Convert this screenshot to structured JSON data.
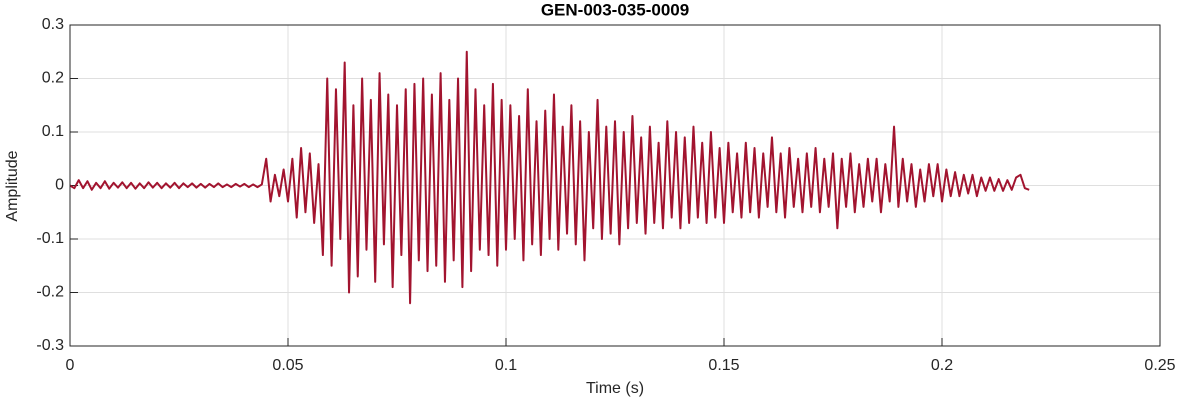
{
  "chart_data": {
    "type": "line",
    "title": "GEN-003-035-0009",
    "x_label": "Time (s)",
    "y_label": "Amplitude",
    "xlim": [
      0,
      0.25
    ],
    "xticks": [
      0,
      0.05,
      0.1,
      0.15,
      0.2,
      0.25
    ],
    "ylim": [
      -0.3,
      0.3
    ],
    "yticks": [
      -0.3,
      -0.2,
      -0.1,
      0,
      0.1,
      0.2,
      0.3
    ],
    "grid": true,
    "series": [
      {
        "color": "#a2142f",
        "x": [
          0,
          0.001,
          0.002,
          0.003,
          0.004,
          0.005,
          0.006,
          0.007,
          0.008,
          0.009,
          0.01,
          0.011,
          0.012,
          0.013,
          0.014,
          0.015,
          0.016,
          0.017,
          0.018,
          0.019,
          0.02,
          0.021,
          0.022,
          0.023,
          0.024,
          0.025,
          0.026,
          0.027,
          0.028,
          0.029,
          0.03,
          0.031,
          0.032,
          0.033,
          0.034,
          0.035,
          0.036,
          0.037,
          0.038,
          0.039,
          0.04,
          0.041,
          0.042,
          0.043,
          0.044,
          0.045,
          0.046,
          0.047,
          0.048,
          0.049,
          0.05,
          0.051,
          0.052,
          0.053,
          0.054,
          0.055,
          0.056,
          0.057,
          0.058,
          0.059,
          0.06,
          0.061,
          0.062,
          0.063,
          0.064,
          0.065,
          0.066,
          0.067,
          0.068,
          0.069,
          0.07,
          0.071,
          0.072,
          0.073,
          0.074,
          0.075,
          0.076,
          0.077,
          0.078,
          0.079,
          0.08,
          0.081,
          0.082,
          0.083,
          0.084,
          0.085,
          0.086,
          0.087,
          0.088,
          0.089,
          0.09,
          0.091,
          0.092,
          0.093,
          0.094,
          0.095,
          0.096,
          0.097,
          0.098,
          0.099,
          0.1,
          0.101,
          0.102,
          0.103,
          0.104,
          0.105,
          0.106,
          0.107,
          0.108,
          0.109,
          0.11,
          0.111,
          0.112,
          0.113,
          0.114,
          0.115,
          0.116,
          0.117,
          0.118,
          0.119,
          0.12,
          0.121,
          0.122,
          0.123,
          0.124,
          0.125,
          0.126,
          0.127,
          0.128,
          0.129,
          0.13,
          0.131,
          0.132,
          0.133,
          0.134,
          0.135,
          0.136,
          0.137,
          0.138,
          0.139,
          0.14,
          0.141,
          0.142,
          0.143,
          0.144,
          0.145,
          0.146,
          0.147,
          0.148,
          0.149,
          0.15,
          0.151,
          0.152,
          0.153,
          0.154,
          0.155,
          0.156,
          0.157,
          0.158,
          0.159,
          0.16,
          0.161,
          0.162,
          0.163,
          0.164,
          0.165,
          0.166,
          0.167,
          0.168,
          0.169,
          0.17,
          0.171,
          0.172,
          0.173,
          0.174,
          0.175,
          0.176,
          0.177,
          0.178,
          0.179,
          0.18,
          0.181,
          0.182,
          0.183,
          0.184,
          0.185,
          0.186,
          0.187,
          0.188,
          0.189,
          0.19,
          0.191,
          0.192,
          0.193,
          0.194,
          0.195,
          0.196,
          0.197,
          0.198,
          0.199,
          0.2,
          0.201,
          0.202,
          0.203,
          0.204,
          0.205,
          0.206,
          0.207,
          0.208,
          0.209,
          0.21,
          0.211,
          0.212,
          0.213,
          0.214,
          0.215,
          0.216,
          0.217,
          0.218,
          0.219,
          0.22
        ],
        "values": [
          0,
          -0.005,
          0.01,
          -0.005,
          0.008,
          -0.008,
          0.005,
          -0.005,
          0.008,
          -0.006,
          0.005,
          -0.004,
          0.006,
          -0.005,
          0.005,
          -0.006,
          0.004,
          -0.005,
          0.006,
          -0.004,
          0.005,
          -0.005,
          0.004,
          -0.004,
          0.005,
          -0.005,
          0.004,
          -0.003,
          0.004,
          -0.004,
          0.003,
          -0.004,
          0.003,
          -0.003,
          0.004,
          -0.003,
          0.002,
          -0.003,
          0.003,
          -0.002,
          0.003,
          -0.003,
          0.002,
          -0.003,
          0.002,
          0.05,
          -0.03,
          0.02,
          -0.02,
          0.03,
          -0.03,
          0.05,
          -0.06,
          0.07,
          -0.05,
          0.06,
          -0.07,
          0.04,
          -0.13,
          0.2,
          -0.15,
          0.18,
          -0.1,
          0.23,
          -0.2,
          0.15,
          -0.17,
          0.2,
          -0.12,
          0.16,
          -0.18,
          0.21,
          -0.11,
          0.17,
          -0.19,
          0.15,
          -0.13,
          0.18,
          -0.22,
          0.19,
          -0.14,
          0.2,
          -0.16,
          0.17,
          -0.15,
          0.21,
          -0.18,
          0.16,
          -0.14,
          0.2,
          -0.19,
          0.25,
          -0.16,
          0.18,
          -0.12,
          0.15,
          -0.13,
          0.19,
          -0.15,
          0.16,
          -0.12,
          0.15,
          -0.1,
          0.13,
          -0.14,
          0.18,
          -0.11,
          0.12,
          -0.13,
          0.14,
          -0.1,
          0.17,
          -0.12,
          0.11,
          -0.09,
          0.15,
          -0.11,
          0.12,
          -0.14,
          0.1,
          -0.08,
          0.16,
          -0.1,
          0.11,
          -0.09,
          0.12,
          -0.11,
          0.1,
          -0.08,
          0.13,
          -0.07,
          0.09,
          -0.09,
          0.11,
          -0.07,
          0.08,
          -0.08,
          0.12,
          -0.06,
          0.1,
          -0.08,
          0.09,
          -0.07,
          0.11,
          -0.06,
          0.08,
          -0.07,
          0.1,
          -0.06,
          0.07,
          -0.07,
          0.08,
          -0.05,
          0.06,
          -0.06,
          0.08,
          -0.05,
          0.07,
          -0.06,
          0.06,
          -0.04,
          0.09,
          -0.05,
          0.06,
          -0.06,
          0.07,
          -0.04,
          0.05,
          -0.05,
          0.06,
          -0.04,
          0.07,
          -0.05,
          0.05,
          -0.04,
          0.06,
          -0.08,
          0.05,
          -0.04,
          0.06,
          -0.05,
          0.04,
          -0.04,
          0.05,
          -0.03,
          0.05,
          -0.05,
          0.04,
          -0.03,
          0.11,
          -0.04,
          0.05,
          -0.03,
          0.04,
          -0.04,
          0.03,
          -0.03,
          0.04,
          -0.02,
          0.04,
          -0.03,
          0.03,
          -0.02,
          0.025,
          -0.02,
          0.02,
          -0.015,
          0.02,
          -0.02,
          0.015,
          -0.01,
          0.015,
          -0.01,
          0.012,
          -0.01,
          0.01,
          -0.008,
          0.015,
          0.02,
          -0.005,
          -0.008
        ]
      }
    ]
  }
}
